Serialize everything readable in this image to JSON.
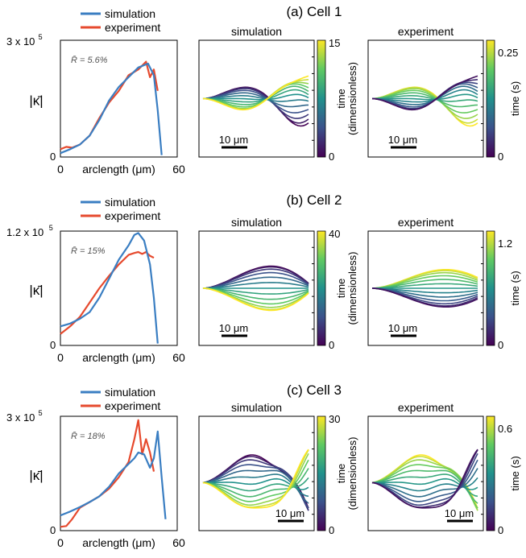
{
  "figure": {
    "rows": [
      {
        "title": "(a) Cell 1",
        "legend": [
          "simulation",
          "experiment"
        ],
        "ymax_label": "3 x 10",
        "ymax_exp": "5",
        "ylabel": "|κ̄|",
        "ylabel_bar": "κ",
        "xlabel": "arclength (μm)",
        "x_ticks": [
          "0",
          "60"
        ],
        "y_zero": "0",
        "r_label": "R̄ = 5.6%",
        "sim_title": "simulation",
        "exp_title": "experiment",
        "sim_cbar_ticks": [
          "15",
          "0"
        ],
        "exp_cbar_ticks": [
          "0.25",
          "0"
        ],
        "sim_cbar_label": [
          "time",
          "(dimensionless)"
        ],
        "exp_cbar_label": [
          "time (s)"
        ],
        "scale_label": "10 μm"
      },
      {
        "title": "(b) Cell 2",
        "legend": [
          "simulation",
          "experiment"
        ],
        "ymax_label": "1.2 x 10",
        "ymax_exp": "5",
        "ylabel": "|κ̄|",
        "ylabel_bar": "κ",
        "xlabel": "arclength (μm)",
        "x_ticks": [
          "0",
          "60"
        ],
        "y_zero": "0",
        "r_label": "R̄ = 15%",
        "sim_title": "simulation",
        "exp_title": "experiment",
        "sim_cbar_ticks": [
          "40",
          "0"
        ],
        "exp_cbar_ticks": [
          "1.2",
          "0"
        ],
        "sim_cbar_label": [
          "time",
          "(dimensionless)"
        ],
        "exp_cbar_label": [
          "time (s)"
        ],
        "scale_label": "10 μm"
      },
      {
        "title": "(c) Cell 3",
        "legend": [
          "simulation",
          "experiment"
        ],
        "ymax_label": "3 x 10",
        "ymax_exp": "5",
        "ylabel": "|κ̄|",
        "ylabel_bar": "κ",
        "xlabel": "arclength (μm)",
        "x_ticks": [
          "0",
          "60"
        ],
        "y_zero": "0",
        "r_label": "R̄ = 18%",
        "sim_title": "simulation",
        "exp_title": "experiment",
        "sim_cbar_ticks": [
          "30",
          "0"
        ],
        "exp_cbar_ticks": [
          "0.6",
          "0"
        ],
        "sim_cbar_label": [
          "time",
          "(dimensionless)"
        ],
        "exp_cbar_label": [
          "time (s)"
        ],
        "scale_label": "10 μm"
      }
    ],
    "colors": {
      "simulation": "#3a7ec2",
      "experiment": "#e64a2e",
      "viridis": [
        "#440154",
        "#3b528b",
        "#21918c",
        "#5ec962",
        "#fde725"
      ]
    }
  },
  "chart_data": [
    {
      "type": "line",
      "title": "(a) Cell 1",
      "xlabel": "arclength (μm)",
      "ylabel": "|κ̄|",
      "xlim": [
        0,
        60
      ],
      "ylim": [
        0,
        300000
      ],
      "series": [
        {
          "name": "simulation",
          "x": [
            0,
            5,
            10,
            15,
            20,
            25,
            30,
            35,
            40,
            45,
            48,
            50,
            52
          ],
          "y": [
            10000,
            20000,
            32000,
            55000,
            95000,
            145000,
            180000,
            205000,
            230000,
            240000,
            210000,
            120000,
            5000
          ]
        },
        {
          "name": "experiment",
          "x": [
            0,
            3,
            6,
            10,
            15,
            20,
            25,
            30,
            35,
            40,
            44,
            46,
            48,
            50
          ],
          "y": [
            20000,
            26000,
            24000,
            32000,
            55000,
            100000,
            140000,
            170000,
            210000,
            225000,
            245000,
            205000,
            225000,
            170000
          ]
        }
      ]
    },
    {
      "type": "line",
      "title": "(b) Cell 2",
      "xlabel": "arclength (μm)",
      "ylabel": "|κ̄|",
      "xlim": [
        0,
        60
      ],
      "ylim": [
        0,
        120000
      ],
      "series": [
        {
          "name": "simulation",
          "x": [
            0,
            5,
            10,
            15,
            20,
            25,
            30,
            35,
            38,
            40,
            43,
            46,
            48,
            50
          ],
          "y": [
            20000,
            23000,
            28000,
            35000,
            50000,
            70000,
            90000,
            105000,
            116000,
            118000,
            110000,
            85000,
            50000,
            2000
          ]
        },
        {
          "name": "experiment",
          "x": [
            0,
            5,
            10,
            15,
            20,
            25,
            30,
            35,
            38,
            40,
            42,
            44,
            46,
            48
          ],
          "y": [
            12000,
            20000,
            30000,
            45000,
            60000,
            73000,
            85000,
            95000,
            97000,
            98000,
            96000,
            98000,
            94000,
            92000
          ]
        }
      ]
    },
    {
      "type": "line",
      "title": "(c) Cell 3",
      "xlabel": "arclength (μm)",
      "ylabel": "|κ̄|",
      "xlim": [
        0,
        60
      ],
      "ylim": [
        0,
        300000
      ],
      "series": [
        {
          "name": "simulation",
          "x": [
            0,
            5,
            10,
            15,
            20,
            25,
            30,
            35,
            38,
            40,
            43,
            46,
            48,
            50,
            52,
            54
          ],
          "y": [
            40000,
            50000,
            62000,
            75000,
            90000,
            115000,
            150000,
            175000,
            190000,
            205000,
            200000,
            165000,
            190000,
            260000,
            140000,
            30000
          ]
        },
        {
          "name": "experiment",
          "x": [
            0,
            3,
            6,
            10,
            15,
            20,
            25,
            30,
            35,
            38,
            40,
            42,
            44,
            46,
            48
          ],
          "y": [
            10000,
            12000,
            30000,
            60000,
            75000,
            90000,
            110000,
            140000,
            180000,
            240000,
            290000,
            200000,
            240000,
            205000,
            155000
          ]
        }
      ]
    }
  ]
}
